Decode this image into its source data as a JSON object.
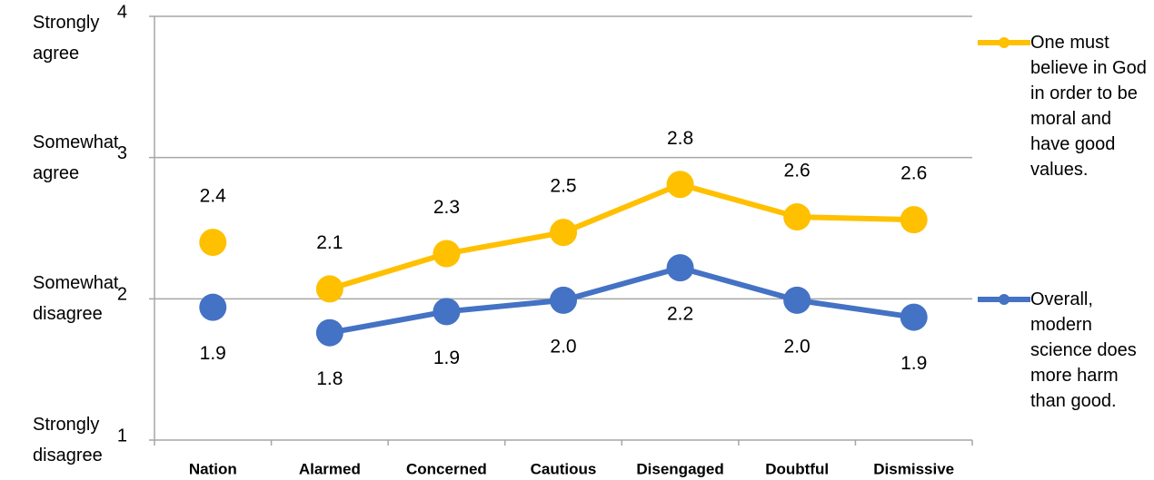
{
  "chart_data": {
    "type": "line",
    "categories": [
      "Nation",
      "Alarmed",
      "Concerned",
      "Cautious",
      "Disengaged",
      "Doubtful",
      "Dismissive"
    ],
    "series": [
      {
        "name": "One must believe in God in order to be moral and have good values.",
        "color": "#FFC000",
        "values": [
          2.4,
          2.07,
          2.32,
          2.47,
          2.81,
          2.58,
          2.56
        ],
        "value_labels": [
          "2.4",
          "2.1",
          "2.3",
          "2.5",
          "2.8",
          "2.6",
          "2.6"
        ]
      },
      {
        "name": "Overall, modern science does more harm than good.",
        "color": "#4472C4",
        "values": [
          1.94,
          1.76,
          1.91,
          1.99,
          2.22,
          1.99,
          1.87
        ],
        "value_labels": [
          "1.9",
          "1.8",
          "1.9",
          "2.0",
          "2.2",
          "2.0",
          "1.9"
        ]
      }
    ],
    "ylim": [
      1,
      4
    ],
    "yticks": [
      1,
      2,
      3,
      4
    ],
    "ylevel_labels": [
      "Strongly disagree",
      "Somewhat disagree",
      "Somewhat agree",
      "Strongly agree"
    ],
    "grid": true,
    "legend": "right"
  }
}
